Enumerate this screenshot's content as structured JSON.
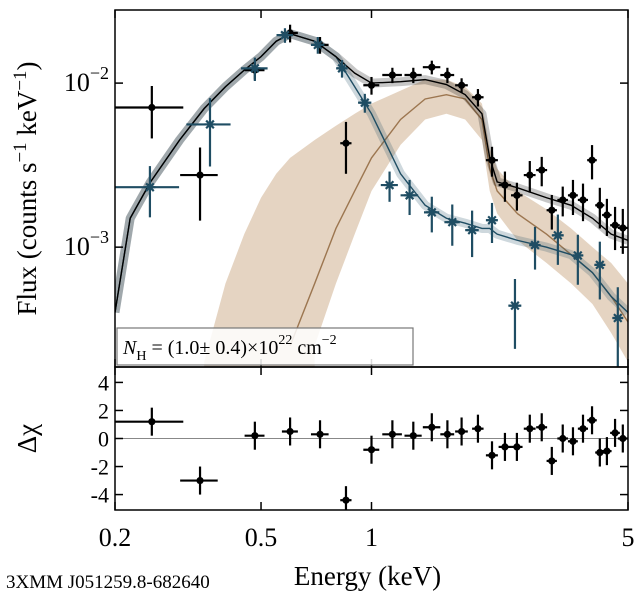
{
  "chart_data": [
    {
      "type": "errorbar",
      "xscale": "log",
      "yscale": "log",
      "ylabel": [
        "Flux (counts s",
        "−1",
        " keV",
        "−1",
        ")"
      ],
      "xlim": [
        0.2,
        5
      ],
      "ylim": [
        0.000186,
        0.0279
      ],
      "yticks": [
        {
          "value": 0.001,
          "label": "10",
          "exponent": "−3"
        },
        {
          "value": 0.01,
          "label": "10",
          "exponent": "−2"
        }
      ],
      "annotation": [
        "N",
        "H",
        " = (1.0± 0.4)×10",
        "22",
        " cm",
        "−2"
      ],
      "series": [
        {
          "color": "#000000",
          "marker": "circle",
          "x": [
            0.252,
            0.341,
            0.481,
            0.6,
            0.724,
            0.852,
            1.0,
            1.14,
            1.3,
            1.46,
            1.61,
            1.76,
            1.95,
            2.13,
            2.31,
            2.49,
            2.7,
            2.91,
            3.1,
            3.32,
            3.54,
            3.77,
            3.99,
            4.19,
            4.38,
            4.61,
            4.84
          ],
          "xerr": [
            0.055,
            0.04,
            0.03,
            0.03,
            0.04,
            0.03,
            0.05,
            0.07,
            0.07,
            0.08,
            0.07,
            0.07,
            0.07,
            0.08,
            0.09,
            0.09,
            0.1,
            0.1,
            0.1,
            0.11,
            0.11,
            0.12,
            0.12,
            0.12,
            0.13,
            0.14,
            0.15
          ],
          "values": [
            0.0071,
            0.00275,
            0.012,
            0.0202,
            0.0171,
            0.0043,
            0.0097,
            0.0112,
            0.0112,
            0.0125,
            0.0112,
            0.0097,
            0.0082,
            0.00339,
            0.00239,
            0.00207,
            0.00275,
            0.00295,
            0.00168,
            0.00194,
            0.00207,
            0.00194,
            0.00339,
            0.0018,
            0.00157,
            0.00136,
            0.00131
          ],
          "yerr": [
            0.0025,
            0.0013,
            0.0015,
            0.0025,
            0.002,
            0.0015,
            0.0012,
            0.0012,
            0.0012,
            0.0012,
            0.0012,
            0.001,
            0.001,
            0.0007,
            0.0005,
            0.0004,
            0.0006,
            0.0006,
            0.0004,
            0.0004,
            0.0005,
            0.0005,
            0.0008,
            0.0005,
            0.0004,
            0.0004,
            0.0004
          ]
        },
        {
          "color": "#1f4d63",
          "marker": "asterisk",
          "x": [
            0.249,
            0.363,
            0.481,
            0.581,
            0.714,
            0.831,
            0.959,
            1.12,
            1.27,
            1.46,
            1.66,
            1.88,
            2.13,
            2.46,
            2.79,
            3.22,
            3.65,
            4.19,
            4.69
          ],
          "xerr": [
            0.05,
            0.05,
            0.04,
            0.03,
            0.03,
            0.03,
            0.04,
            0.06,
            0.07,
            0.07,
            0.08,
            0.08,
            0.08,
            0.1,
            0.1,
            0.12,
            0.12,
            0.12,
            0.15
          ],
          "values": [
            0.00232,
            0.0056,
            0.0123,
            0.0196,
            0.0171,
            0.0123,
            0.0076,
            0.00239,
            0.00207,
            0.00163,
            0.00142,
            0.00127,
            0.00146,
            0.00044,
            0.00103,
            0.00118,
            0.00089,
            0.00078,
            0.00037
          ],
          "yerr": [
            0.0008,
            0.0025,
            0.002,
            0.002,
            0.002,
            0.0015,
            0.001,
            0.0005,
            0.0005,
            0.0004,
            0.0004,
            0.0004,
            0.0004,
            0.0002,
            0.0003,
            0.0004,
            0.0003,
            0.0003,
            0.0002
          ]
        }
      ],
      "model_x": [
        0.2,
        0.22,
        0.25,
        0.3,
        0.35,
        0.4,
        0.45,
        0.5,
        0.55,
        0.6,
        0.7,
        0.8,
        0.9,
        1.0,
        1.2,
        1.4,
        1.6,
        1.8,
        2.0,
        2.1,
        2.2,
        2.5,
        3,
        3.5,
        4,
        4.5,
        5
      ],
      "models": [
        {
          "color": "#000000",
          "values": [
            0.0004,
            0.0015,
            0.0025,
            0.0045,
            0.007,
            0.0095,
            0.012,
            0.0145,
            0.018,
            0.02,
            0.018,
            0.0145,
            0.0115,
            0.01,
            0.0102,
            0.0105,
            0.0098,
            0.0085,
            0.0065,
            0.0035,
            0.0025,
            0.0023,
            0.002,
            0.0018,
            0.0015,
            0.0012,
            0.0011
          ]
        },
        {
          "color": "#1f4d63",
          "values": [
            0.0004,
            0.0015,
            0.0025,
            0.0045,
            0.007,
            0.0095,
            0.012,
            0.0145,
            0.018,
            0.02,
            0.018,
            0.0145,
            0.0095,
            0.0065,
            0.0028,
            0.0018,
            0.0015,
            0.0014,
            0.0013,
            0.0013,
            0.0012,
            0.0011,
            0.001,
            0.0009,
            0.0007,
            0.0005,
            0.0004
          ]
        },
        {
          "color": "#9c7650",
          "band_color": "#dcc6ae",
          "values": [
            null,
            null,
            null,
            null,
            null,
            null,
            null,
            null,
            null,
            0.00025,
            0.0006,
            0.0013,
            0.0022,
            0.0035,
            0.006,
            0.008,
            0.0085,
            0.008,
            0.006,
            0.003,
            0.0022,
            0.0016,
            0.0012,
            0.0009,
            0.0007,
            0.0005,
            0.00035
          ],
          "low": [
            null,
            null,
            null,
            null,
            null,
            null,
            null,
            null,
            null,
            null,
            0.00025,
            0.0006,
            0.0012,
            0.0022,
            0.0042,
            0.006,
            0.0065,
            0.006,
            0.0045,
            0.0022,
            0.0016,
            0.0011,
            0.0008,
            0.0006,
            0.00045,
            0.0003,
            0.0002
          ],
          "high": [
            null,
            null,
            null,
            null,
            0.0002,
            0.0006,
            0.0012,
            0.002,
            0.0028,
            0.0035,
            0.0045,
            0.0055,
            0.0065,
            0.0075,
            0.009,
            0.0105,
            0.0105,
            0.0095,
            0.0075,
            0.004,
            0.003,
            0.0022,
            0.0017,
            0.0013,
            0.001,
            0.0008,
            0.0006
          ]
        }
      ]
    },
    {
      "type": "errorbar",
      "xscale": "log",
      "ylabel": "Δχ",
      "xlabel": "Energy (keV)",
      "xlim": [
        0.2,
        5
      ],
      "xticks": [
        0.2,
        0.5,
        1,
        5
      ],
      "ylim": [
        -5.1,
        5.1
      ],
      "yticks": [
        -4,
        -2,
        0,
        2,
        4
      ],
      "series": [
        {
          "color": "#000000",
          "marker": "circle",
          "x": [
            0.252,
            0.341,
            0.481,
            0.6,
            0.724,
            0.852,
            1.0,
            1.14,
            1.3,
            1.46,
            1.61,
            1.76,
            1.95,
            2.13,
            2.31,
            2.49,
            2.7,
            2.91,
            3.1,
            3.32,
            3.54,
            3.77,
            3.99,
            4.19,
            4.38,
            4.61,
            4.84
          ],
          "xerr": [
            0.055,
            0.04,
            0.03,
            0.03,
            0.04,
            0.03,
            0.05,
            0.07,
            0.07,
            0.08,
            0.07,
            0.07,
            0.07,
            0.08,
            0.09,
            0.09,
            0.1,
            0.1,
            0.1,
            0.11,
            0.11,
            0.12,
            0.12,
            0.12,
            0.13,
            0.14,
            0.15
          ],
          "values": [
            1.2,
            -3,
            0.2,
            0.5,
            0.3,
            -4.4,
            -0.8,
            0.3,
            0.2,
            0.8,
            0.3,
            0.5,
            0.7,
            -1.2,
            -0.6,
            -0.6,
            0.7,
            0.8,
            -1.6,
            0,
            -0.2,
            0.7,
            1.3,
            -1,
            -0.9,
            0.4,
            0
          ],
          "yerr": [
            1,
            1,
            1,
            1,
            1,
            1,
            1,
            1,
            1,
            1,
            1,
            1,
            1,
            1,
            1,
            1,
            1,
            1,
            1,
            1,
            1,
            1,
            1,
            1,
            1,
            1,
            1
          ]
        }
      ]
    }
  ],
  "source": "3XMM J051259.8-682640"
}
